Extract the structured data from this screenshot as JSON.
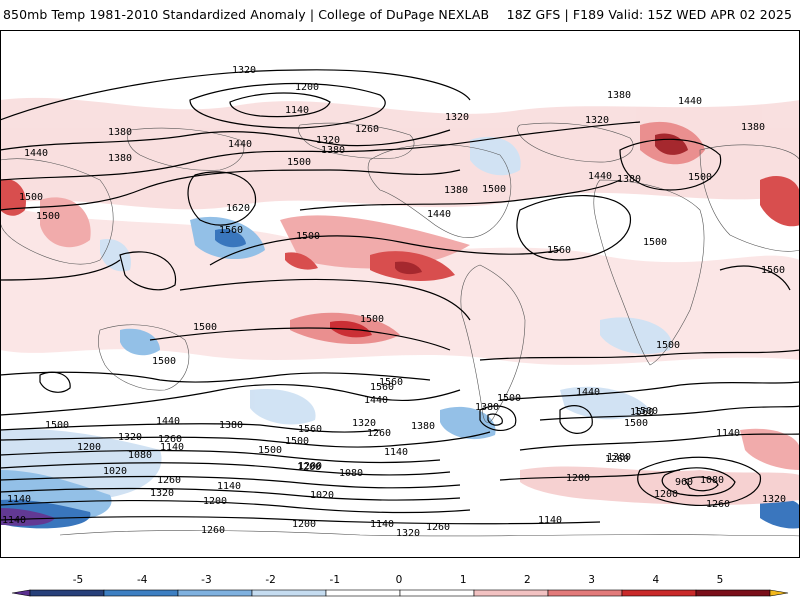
{
  "header": {
    "left": "850mb Temp 1981-2010 Standardized Anomaly | College of DuPage NEXLAB",
    "right": "18Z GFS | F189 Valid: 15Z WED APR 02 2025"
  },
  "legend": {
    "ticks": [
      "-5",
      "-4",
      "-3",
      "-2",
      "-1",
      "0",
      "1",
      "2",
      "3",
      "4",
      "5"
    ],
    "colors": [
      "#5a2f8f",
      "#27407a",
      "#3d7fc2",
      "#7fb1df",
      "#c5dcf0",
      "#ffffff",
      "#ffffff",
      "#f2c2c2",
      "#e27a7a",
      "#c92a2a",
      "#7a0f1a",
      "#f1b71c"
    ]
  },
  "map": {
    "anomaly_colors": {
      "warm_light": "#f6cfcf",
      "warm_mid": "#e98a8a",
      "warm_strong": "#c9242b",
      "cool_light": "#cfe1f3",
      "cool_mid": "#8ebde6",
      "cool_strong": "#2f6fba",
      "cool_extreme": "#5a2f8f"
    },
    "contour_labels": [
      "1320",
      "1200",
      "1140",
      "1260",
      "1320",
      "1380",
      "1440",
      "1380",
      "1440",
      "1380",
      "1320",
      "1440",
      "1380",
      "1500",
      "1320",
      "1380",
      "1500",
      "1440",
      "1380",
      "1500",
      "1560",
      "1620",
      "1560",
      "1500",
      "1440",
      "1380",
      "1500",
      "1560",
      "1500",
      "1500",
      "1500",
      "1500",
      "1500",
      "1500",
      "1560",
      "1500",
      "1500",
      "1500",
      "1440",
      "1380",
      "1380",
      "1560",
      "1320",
      "1260",
      "1380",
      "1440",
      "1560",
      "1500",
      "1500",
      "1440",
      "1320",
      "1200",
      "1080",
      "1020",
      "1260",
      "1140",
      "1200",
      "1260",
      "1560",
      "1500",
      "1200",
      "1080",
      "1140",
      "1020",
      "1320",
      "1380",
      "1260",
      "1200",
      "1140",
      "960",
      "1080",
      "1200",
      "1260",
      "1320",
      "1140",
      "1140",
      "1140",
      "1200",
      "1140",
      "1260",
      "1320",
      "1200",
      "1140",
      "1260"
    ]
  }
}
